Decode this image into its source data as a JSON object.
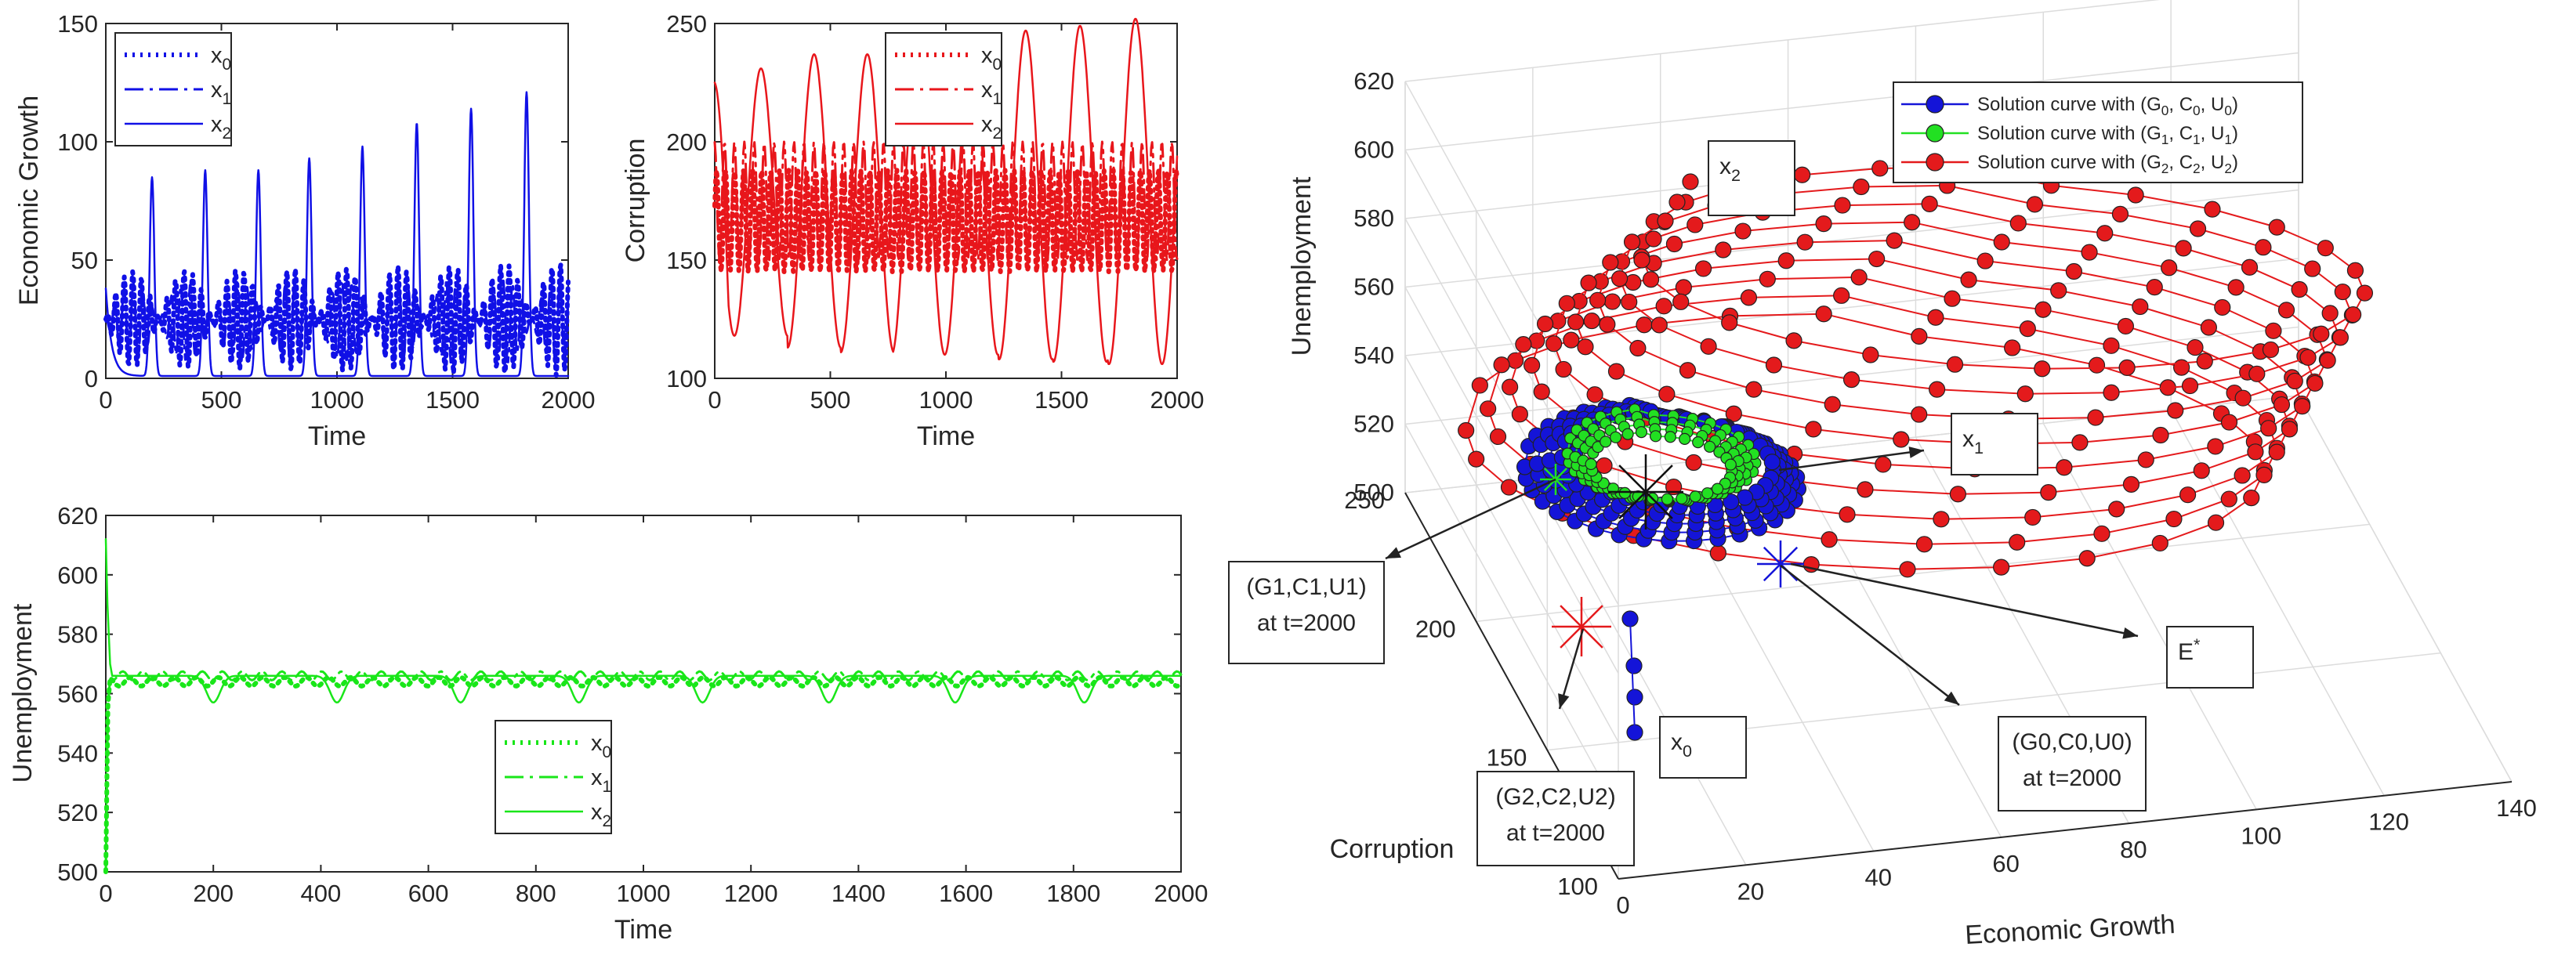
{
  "chart_data": [
    {
      "type": "line",
      "id": "growth",
      "xlabel": "Time",
      "ylabel": "Economic Growth",
      "xlim": [
        0,
        2000
      ],
      "ylim": [
        0,
        150
      ],
      "xticks": [
        "0",
        "500",
        "1000",
        "1500",
        "2000"
      ],
      "yticks": [
        "0",
        "50",
        "100",
        "150"
      ],
      "legend_position": "top-left",
      "color": "#1010e6",
      "peak_times": [
        200,
        430,
        660,
        880,
        1110,
        1345,
        1580,
        1820
      ],
      "series": [
        {
          "name": "x0",
          "style": "dotted",
          "min": 5,
          "max": 45,
          "amp_growth": 4
        },
        {
          "name": "x1",
          "style": "dashdot",
          "min": 8,
          "max": 40,
          "amp_growth": 2
        },
        {
          "name": "x2",
          "style": "solid",
          "start": 38,
          "peaks": [
            85,
            88,
            88,
            93,
            98,
            108,
            114,
            121
          ],
          "baseline": 1
        }
      ]
    },
    {
      "type": "line",
      "id": "corruption",
      "xlabel": "Time",
      "ylabel": "Corruption",
      "xlim": [
        0,
        2000
      ],
      "ylim": [
        100,
        250
      ],
      "xticks": [
        "0",
        "500",
        "1000",
        "1500",
        "2000"
      ],
      "yticks": [
        "100",
        "150",
        "200",
        "250"
      ],
      "legend_position": "top-right",
      "color": "#e8161b",
      "series": [
        {
          "name": "x0",
          "style": "dotted",
          "min": 145,
          "max": 188
        },
        {
          "name": "x1",
          "style": "dashdot",
          "min": 150,
          "max": 200
        },
        {
          "name": "x2",
          "style": "solid",
          "start": 225,
          "peaks": [
            231,
            237,
            237,
            243,
            243,
            247,
            249,
            252
          ],
          "troughs": [
            118,
            113,
            111,
            110,
            110,
            108,
            107,
            106
          ]
        }
      ]
    },
    {
      "type": "line",
      "id": "unemployment",
      "xlabel": "Time",
      "ylabel": "Unemployment",
      "xlim": [
        0,
        2000
      ],
      "ylim": [
        500,
        620
      ],
      "xticks": [
        "0",
        "200",
        "400",
        "600",
        "800",
        "1000",
        "1200",
        "1400",
        "1600",
        "1800",
        "2000"
      ],
      "yticks": [
        "500",
        "520",
        "540",
        "560",
        "580",
        "600",
        "620"
      ],
      "legend_position": "bottom-center",
      "color": "#19e619",
      "series": [
        {
          "name": "x0",
          "style": "dotted",
          "level": 564
        },
        {
          "name": "x1",
          "style": "dashdot",
          "level": 566
        },
        {
          "name": "x2",
          "style": "solid",
          "level": 566,
          "dip_level": 557,
          "start": 612
        }
      ]
    },
    {
      "type": "scatter3d",
      "id": "phase",
      "xlabel": "Economic Growth",
      "ylabel": "Corruption",
      "zlabel": "Unemployment",
      "xlim": [
        0,
        140
      ],
      "ylim": [
        100,
        250
      ],
      "zlim": [
        500,
        620
      ],
      "xticks": [
        "0",
        "20",
        "40",
        "60",
        "80",
        "100",
        "120",
        "140"
      ],
      "yticks": [
        "100",
        "150",
        "200",
        "250"
      ],
      "zticks": [
        "500",
        "520",
        "540",
        "560",
        "580",
        "600",
        "620"
      ],
      "legend_position": "top-right",
      "series": [
        {
          "name": "Solution curve with (G0,C0,U0)",
          "color": "#1414d8"
        },
        {
          "name": "Solution curve with (G1,C1,U1)",
          "color": "#22e022"
        },
        {
          "name": "Solution curve with (G2,C2,U2)",
          "color": "#e41a1c"
        }
      ]
    }
  ],
  "legend_labels": {
    "sub_x": "x",
    "subs": [
      "0",
      "1",
      "2"
    ],
    "sol_prefix": "Solution curve with ",
    "tuples": [
      [
        "G",
        "0",
        "C",
        "0",
        "U",
        "0"
      ],
      [
        "G",
        "1",
        "C",
        "1",
        "U",
        "1"
      ],
      [
        "G",
        "2",
        "C",
        "2",
        "U",
        "2"
      ]
    ]
  },
  "annotations": {
    "x2": {
      "letter": "x",
      "sub": "2"
    },
    "x1": {
      "letter": "x",
      "sub": "1"
    },
    "x0": {
      "letter": "x",
      "sub": "0"
    },
    "estar": {
      "letter": "E",
      "sup": "*"
    },
    "g1": {
      "line1": "(G1,C1,U1)",
      "line2": "at t=2000"
    },
    "g2": {
      "line1": "(G2,C2,U2)",
      "line2": "at t=2000"
    },
    "g0": {
      "line1": "(G0,C0,U0)",
      "line2": "at t=2000"
    }
  }
}
